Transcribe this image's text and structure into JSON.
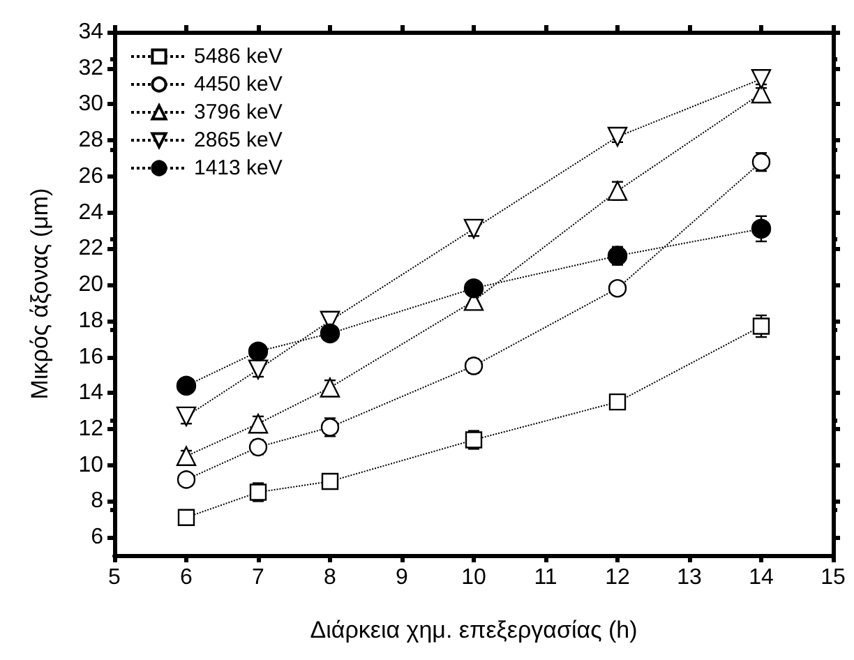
{
  "chart_data": {
    "type": "line",
    "xlabel": "Διάρκεια χημ. επεξεργασίας (h)",
    "ylabel": "Μικρός άξονας (μm)",
    "x": [
      6,
      7,
      8,
      10,
      12,
      14
    ],
    "xlim": [
      5,
      15
    ],
    "xticks": [
      5,
      6,
      7,
      8,
      9,
      10,
      11,
      12,
      13,
      14,
      15
    ],
    "ylim": [
      5,
      34
    ],
    "yticks": [
      6,
      8,
      10,
      12,
      14,
      16,
      18,
      20,
      22,
      24,
      26,
      28,
      30,
      32,
      34
    ],
    "grid": false,
    "legend": "top left",
    "line_style": "dotted",
    "series": [
      {
        "name": "5486 keV",
        "color": "#000000",
        "marker": "square",
        "values": [
          7.1,
          8.5,
          9.1,
          11.4,
          13.5,
          17.7
        ],
        "errors": [
          null,
          0.5,
          0.3,
          0.5,
          null,
          0.6
        ]
      },
      {
        "name": "4450 keV",
        "color": "#000000",
        "marker": "circle",
        "values": [
          9.2,
          11.0,
          12.1,
          15.5,
          19.8,
          26.8
        ],
        "errors": [
          0.3,
          0.4,
          0.5,
          0.4,
          0.3,
          0.5
        ]
      },
      {
        "name": "3796 keV",
        "color": "#000000",
        "marker": "triangle",
        "values": [
          10.5,
          12.3,
          14.3,
          19.1,
          25.2,
          30.6
        ],
        "errors": [
          0.3,
          0.4,
          0.4,
          0.4,
          0.5,
          0.5
        ]
      },
      {
        "name": "2865 keV",
        "color": "#000000",
        "marker": "triangle-down",
        "values": [
          12.7,
          15.3,
          18.0,
          23.1,
          28.2,
          31.4
        ],
        "errors": [
          0.4,
          0.4,
          0.4,
          0.4,
          0.3,
          0.5
        ]
      },
      {
        "name": "1413 keV",
        "color": "#000000",
        "marker": "circle-filled",
        "values": [
          14.4,
          16.3,
          17.3,
          19.8,
          21.6,
          23.1
        ],
        "errors": [
          0.2,
          0.3,
          0.3,
          0.4,
          0.5,
          0.7
        ]
      }
    ]
  }
}
